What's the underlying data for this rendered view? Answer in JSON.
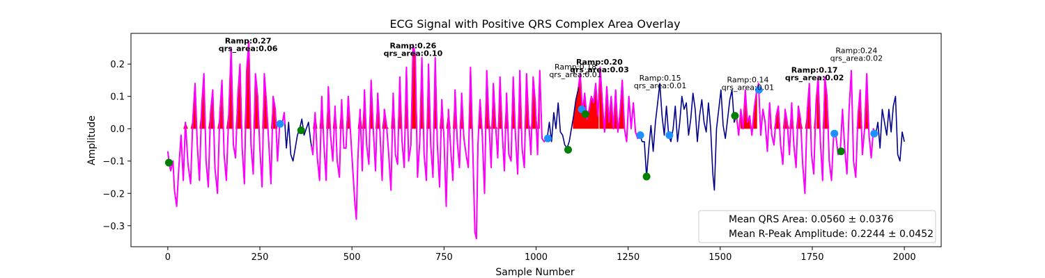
{
  "chart_data": {
    "type": "line",
    "title": "ECG Signal with Positive QRS Complex Area Overlay",
    "xlabel": "Sample Number",
    "ylabel": "Amplitude",
    "xlim": [
      -100,
      2100
    ],
    "ylim": [
      -0.365,
      0.295
    ],
    "x_ticks": [
      0,
      250,
      500,
      750,
      1000,
      1250,
      1500,
      1750,
      2000
    ],
    "y_ticks": [
      -0.3,
      -0.2,
      -0.1,
      0.0,
      0.1,
      0.2
    ],
    "grid": false,
    "legend_position": "lower-right",
    "colors": {
      "signal_base": "#00008b",
      "signal_qrs": "#ff00ff",
      "signal_qrs_faint": "#9b30d8",
      "area_fill": "#ff0000",
      "onset_marker": "#1e90ff",
      "offset_marker": "#008000"
    },
    "signal_anchor_points": [
      [
        0,
        -0.07
      ],
      [
        4,
        -0.11
      ],
      [
        8,
        -0.13
      ],
      [
        14,
        -0.1
      ],
      [
        18,
        -0.19
      ],
      [
        24,
        -0.24
      ],
      [
        30,
        -0.12
      ],
      [
        36,
        -0.02
      ],
      [
        42,
        -0.16
      ],
      [
        48,
        0.02
      ],
      [
        55,
        -0.11
      ],
      [
        62,
        -0.17
      ],
      [
        68,
        0.03
      ],
      [
        74,
        0.14
      ],
      [
        80,
        -0.05
      ],
      [
        86,
        -0.16
      ],
      [
        92,
        0.07
      ],
      [
        98,
        0.17
      ],
      [
        104,
        -0.1
      ],
      [
        110,
        -0.18
      ],
      [
        116,
        0.05
      ],
      [
        122,
        0.12
      ],
      [
        128,
        -0.12
      ],
      [
        135,
        -0.2
      ],
      [
        141,
        0.04
      ],
      [
        147,
        0.15
      ],
      [
        153,
        -0.08
      ],
      [
        159,
        -0.16
      ],
      [
        166,
        0.06
      ],
      [
        172,
        0.25
      ],
      [
        178,
        -0.05
      ],
      [
        184,
        -0.09
      ],
      [
        190,
        0.1
      ],
      [
        196,
        0.2
      ],
      [
        202,
        -0.06
      ],
      [
        208,
        -0.17
      ],
      [
        214,
        0.18
      ],
      [
        220,
        0.27
      ],
      [
        226,
        -0.05
      ],
      [
        232,
        -0.14
      ],
      [
        238,
        0.17
      ],
      [
        244,
        0.1
      ],
      [
        250,
        -0.06
      ],
      [
        256,
        -0.18
      ],
      [
        262,
        0.17
      ],
      [
        268,
        0.08
      ],
      [
        274,
        -0.04
      ],
      [
        280,
        -0.17
      ],
      [
        286,
        0.1
      ],
      [
        292,
        0.06
      ],
      [
        298,
        -0.1
      ],
      [
        304,
        0.02
      ],
      [
        310,
        0.01
      ],
      [
        316,
        0.05
      ],
      [
        322,
        -0.06
      ],
      [
        328,
        0.02
      ],
      [
        334,
        -0.08
      ],
      [
        340,
        -0.1
      ],
      [
        346,
        -0.06
      ],
      [
        352,
        -0.02
      ],
      [
        358,
        0.0
      ],
      [
        364,
        0.03
      ],
      [
        370,
        -0.02
      ],
      [
        376,
        0.0
      ],
      [
        382,
        0.02
      ],
      [
        388,
        -0.04
      ],
      [
        394,
        -0.08
      ],
      [
        400,
        0.05
      ],
      [
        406,
        -0.09
      ],
      [
        412,
        -0.16
      ],
      [
        418,
        0.1
      ],
      [
        424,
        -0.05
      ],
      [
        430,
        -0.16
      ],
      [
        436,
        0.13
      ],
      [
        442,
        -0.02
      ],
      [
        448,
        -0.1
      ],
      [
        454,
        0.07
      ],
      [
        460,
        -0.1
      ],
      [
        466,
        -0.15
      ],
      [
        472,
        0.09
      ],
      [
        478,
        -0.06
      ],
      [
        484,
        -0.06
      ],
      [
        490,
        0.1
      ],
      [
        496,
        -0.01
      ],
      [
        502,
        -0.12
      ],
      [
        508,
        -0.23
      ],
      [
        512,
        -0.28
      ],
      [
        516,
        -0.1
      ],
      [
        522,
        0.06
      ],
      [
        528,
        -0.13
      ],
      [
        534,
        0.12
      ],
      [
        540,
        -0.05
      ],
      [
        546,
        -0.11
      ],
      [
        552,
        0.15
      ],
      [
        558,
        0.0
      ],
      [
        564,
        -0.13
      ],
      [
        570,
        0.11
      ],
      [
        576,
        -0.01
      ],
      [
        582,
        -0.16
      ],
      [
        588,
        0.06
      ],
      [
        594,
        0.01
      ],
      [
        600,
        -0.08
      ],
      [
        606,
        -0.19
      ],
      [
        612,
        0.11
      ],
      [
        618,
        -0.08
      ],
      [
        624,
        -0.11
      ],
      [
        630,
        0.16
      ],
      [
        636,
        -0.04
      ],
      [
        642,
        -0.12
      ],
      [
        648,
        0.19
      ],
      [
        654,
        -0.1
      ],
      [
        660,
        -0.05
      ],
      [
        666,
        0.26
      ],
      [
        672,
        0.23
      ],
      [
        678,
        -0.15
      ],
      [
        684,
        -0.04
      ],
      [
        690,
        0.22
      ],
      [
        696,
        -0.08
      ],
      [
        702,
        -0.16
      ],
      [
        708,
        0.2
      ],
      [
        714,
        -0.05
      ],
      [
        720,
        -0.15
      ],
      [
        726,
        0.22
      ],
      [
        732,
        -0.05
      ],
      [
        738,
        -0.18
      ],
      [
        744,
        0.09
      ],
      [
        750,
        -0.03
      ],
      [
        756,
        -0.24
      ],
      [
        762,
        0.06
      ],
      [
        768,
        -0.06
      ],
      [
        774,
        -0.16
      ],
      [
        780,
        0.12
      ],
      [
        786,
        -0.04
      ],
      [
        792,
        -0.12
      ],
      [
        798,
        0.11
      ],
      [
        804,
        -0.03
      ],
      [
        810,
        -0.08
      ],
      [
        816,
        -0.12
      ],
      [
        822,
        0.19
      ],
      [
        828,
        -0.06
      ],
      [
        834,
        -0.32
      ],
      [
        838,
        -0.34
      ],
      [
        842,
        -0.05
      ],
      [
        848,
        0.09
      ],
      [
        854,
        -0.02
      ],
      [
        860,
        -0.2
      ],
      [
        866,
        0.18
      ],
      [
        872,
        0.02
      ],
      [
        878,
        -0.12
      ],
      [
        884,
        0.14
      ],
      [
        890,
        0.01
      ],
      [
        896,
        -0.09
      ],
      [
        902,
        0.16
      ],
      [
        908,
        -0.01
      ],
      [
        914,
        -0.13
      ],
      [
        920,
        0.11
      ],
      [
        926,
        -0.08
      ],
      [
        932,
        -0.1
      ],
      [
        938,
        0.16
      ],
      [
        944,
        -0.02
      ],
      [
        950,
        -0.14
      ],
      [
        956,
        0.18
      ],
      [
        962,
        -0.06
      ],
      [
        968,
        -0.12
      ],
      [
        974,
        0.17
      ],
      [
        980,
        0.02
      ],
      [
        986,
        -0.08
      ],
      [
        992,
        0.16
      ],
      [
        998,
        0.08
      ],
      [
        1004,
        -0.08
      ],
      [
        1010,
        0.18
      ],
      [
        1016,
        -0.03
      ],
      [
        1022,
        -0.04
      ],
      [
        1030,
        -0.03
      ],
      [
        1036,
        0.02
      ],
      [
        1042,
        -0.04
      ],
      [
        1048,
        0.05
      ],
      [
        1054,
        0.0
      ],
      [
        1060,
        0.08
      ],
      [
        1066,
        -0.01
      ],
      [
        1072,
        -0.02
      ],
      [
        1078,
        -0.05
      ],
      [
        1084,
        -0.06
      ],
      [
        1090,
        -0.04
      ],
      [
        1096,
        0.0
      ],
      [
        1102,
        0.04
      ],
      [
        1108,
        0.09
      ],
      [
        1114,
        0.12
      ],
      [
        1120,
        0.17
      ],
      [
        1126,
        0.05
      ],
      [
        1132,
        0.11
      ],
      [
        1138,
        0.03
      ],
      [
        1144,
        0.06
      ],
      [
        1150,
        0.1
      ],
      [
        1156,
        0.08
      ],
      [
        1162,
        0.14
      ],
      [
        1168,
        0.04
      ],
      [
        1174,
        0.19
      ],
      [
        1180,
        0.08
      ],
      [
        1186,
        -0.01
      ],
      [
        1192,
        0.13
      ],
      [
        1198,
        0.02
      ],
      [
        1204,
        0.1
      ],
      [
        1210,
        0.0
      ],
      [
        1216,
        0.12
      ],
      [
        1222,
        -0.01
      ],
      [
        1228,
        0.05
      ],
      [
        1234,
        0.15
      ],
      [
        1240,
        0.0
      ],
      [
        1246,
        -0.04
      ],
      [
        1252,
        0.1
      ],
      [
        1258,
        0.0
      ],
      [
        1264,
        0.08
      ],
      [
        1270,
        -0.01
      ],
      [
        1276,
        -0.03
      ],
      [
        1282,
        -0.02
      ],
      [
        1288,
        -0.04
      ],
      [
        1294,
        -0.04
      ],
      [
        1300,
        -0.15
      ],
      [
        1306,
        -0.06
      ],
      [
        1312,
        0.01
      ],
      [
        1318,
        -0.07
      ],
      [
        1324,
        0.02
      ],
      [
        1330,
        0.08
      ],
      [
        1336,
        0.14
      ],
      [
        1342,
        0.04
      ],
      [
        1348,
        -0.02
      ],
      [
        1354,
        0.07
      ],
      [
        1360,
        -0.02
      ],
      [
        1366,
        -0.04
      ],
      [
        1372,
        0.0
      ],
      [
        1378,
        0.07
      ],
      [
        1384,
        -0.04
      ],
      [
        1390,
        0.02
      ],
      [
        1396,
        0.1
      ],
      [
        1402,
        0.06
      ],
      [
        1408,
        0.08
      ],
      [
        1414,
        -0.02
      ],
      [
        1420,
        0.03
      ],
      [
        1426,
        0.11
      ],
      [
        1432,
        0.06
      ],
      [
        1438,
        -0.04
      ],
      [
        1444,
        0.04
      ],
      [
        1450,
        0.09
      ],
      [
        1456,
        0.02
      ],
      [
        1462,
        -0.01
      ],
      [
        1468,
        0.08
      ],
      [
        1474,
        0.0
      ],
      [
        1480,
        -0.14
      ],
      [
        1484,
        -0.19
      ],
      [
        1490,
        0.0
      ],
      [
        1496,
        0.06
      ],
      [
        1502,
        0.12
      ],
      [
        1508,
        0.01
      ],
      [
        1514,
        -0.03
      ],
      [
        1520,
        0.03
      ],
      [
        1526,
        0.09
      ],
      [
        1532,
        0.12
      ],
      [
        1538,
        0.02
      ],
      [
        1544,
        0.04
      ],
      [
        1550,
        -0.02
      ],
      [
        1556,
        0.06
      ],
      [
        1562,
        0.0
      ],
      [
        1568,
        0.12
      ],
      [
        1574,
        0.02
      ],
      [
        1580,
        0.04
      ],
      [
        1586,
        -0.02
      ],
      [
        1592,
        0.06
      ],
      [
        1598,
        0.11
      ],
      [
        1604,
        0.14
      ],
      [
        1610,
        -0.02
      ],
      [
        1616,
        0.06
      ],
      [
        1622,
        0.02
      ],
      [
        1628,
        -0.07
      ],
      [
        1634,
        0.08
      ],
      [
        1640,
        -0.02
      ],
      [
        1646,
        -0.05
      ],
      [
        1652,
        0.04
      ],
      [
        1658,
        0.07
      ],
      [
        1664,
        -0.05
      ],
      [
        1670,
        -0.11
      ],
      [
        1676,
        0.06
      ],
      [
        1682,
        0.02
      ],
      [
        1688,
        -0.08
      ],
      [
        1694,
        0.08
      ],
      [
        1700,
        -0.05
      ],
      [
        1706,
        -0.12
      ],
      [
        1712,
        0.07
      ],
      [
        1718,
        0.03
      ],
      [
        1724,
        -0.11
      ],
      [
        1730,
        -0.2
      ],
      [
        1736,
        0.05
      ],
      [
        1742,
        0.14
      ],
      [
        1748,
        -0.08
      ],
      [
        1754,
        -0.14
      ],
      [
        1760,
        0.08
      ],
      [
        1766,
        0.16
      ],
      [
        1772,
        -0.04
      ],
      [
        1778,
        -0.16
      ],
      [
        1784,
        0.16
      ],
      [
        1790,
        0.1
      ],
      [
        1796,
        -0.1
      ],
      [
        1802,
        -0.16
      ],
      [
        1808,
        -0.02
      ],
      [
        1814,
        -0.02
      ],
      [
        1820,
        -0.08
      ],
      [
        1826,
        -0.07
      ],
      [
        1832,
        0.06
      ],
      [
        1838,
        -0.06
      ],
      [
        1844,
        -0.14
      ],
      [
        1850,
        0.06
      ],
      [
        1856,
        0.18
      ],
      [
        1862,
        -0.1
      ],
      [
        1868,
        -0.15
      ],
      [
        1874,
        0.04
      ],
      [
        1880,
        0.12
      ],
      [
        1886,
        -0.08
      ],
      [
        1892,
        0.0
      ],
      [
        1898,
        0.17
      ],
      [
        1904,
        -0.02
      ],
      [
        1910,
        -0.09
      ],
      [
        1916,
        0.0
      ],
      [
        1922,
        -0.02
      ],
      [
        1928,
        0.02
      ],
      [
        1934,
        -0.06
      ],
      [
        1940,
        0.06
      ],
      [
        1946,
        0.02
      ],
      [
        1952,
        -0.02
      ],
      [
        1958,
        0.06
      ],
      [
        1964,
        -0.01
      ],
      [
        1970,
        0.07
      ],
      [
        1976,
        0.1
      ],
      [
        1982,
        -0.08
      ],
      [
        1988,
        -0.1
      ],
      [
        1994,
        -0.01
      ],
      [
        2000,
        -0.04
      ]
    ],
    "qrs_segments": [
      {
        "start": 0,
        "end": 318,
        "color": "signal_qrs"
      },
      {
        "start": 390,
        "end": 1030,
        "color": "signal_qrs"
      },
      {
        "start": 1115,
        "end": 1285,
        "color": "signal_qrs"
      },
      {
        "start": 1540,
        "end": 1650,
        "color": "signal_qrs"
      },
      {
        "start": 1650,
        "end": 1920,
        "color": "signal_qrs"
      }
    ],
    "area_regions": [
      {
        "start": 25,
        "end": 300
      },
      {
        "start": 385,
        "end": 1010
      },
      {
        "start": 1100,
        "end": 1170
      },
      {
        "start": 1172,
        "end": 1250
      },
      {
        "start": 1555,
        "end": 1600
      },
      {
        "start": 1635,
        "end": 1760
      },
      {
        "start": 1762,
        "end": 1800
      },
      {
        "start": 1870,
        "end": 1910
      }
    ],
    "onset_markers": [
      {
        "x": 305,
        "y": 0.015
      },
      {
        "x": 1032,
        "y": -0.03
      },
      {
        "x": 1124,
        "y": 0.06
      },
      {
        "x": 1283,
        "y": -0.02
      },
      {
        "x": 1362,
        "y": -0.02
      },
      {
        "x": 1605,
        "y": 0.12
      },
      {
        "x": 1810,
        "y": -0.015
      },
      {
        "x": 1918,
        "y": -0.015
      }
    ],
    "offset_markers": [
      {
        "x": 3,
        "y": -0.105
      },
      {
        "x": 362,
        "y": -0.005
      },
      {
        "x": 1087,
        "y": -0.065
      },
      {
        "x": 1134,
        "y": 0.045
      },
      {
        "x": 1300,
        "y": -0.148
      },
      {
        "x": 1540,
        "y": 0.04
      },
      {
        "x": 1828,
        "y": -0.07
      }
    ],
    "annotations": [
      {
        "lines": [
          "Ramp:0.27",
          "qrs_area:0.06"
        ],
        "x": 218,
        "y": 0.27,
        "bold": true
      },
      {
        "lines": [
          "Ramp:0.26",
          "qrs_area:0.10"
        ],
        "x": 666,
        "y": 0.255,
        "bold": true
      },
      {
        "lines": [
          "Ramp:0.18",
          "qrs_area:0.01"
        ],
        "x": 1107,
        "y": 0.19,
        "bold": false
      },
      {
        "lines": [
          "Ramp:0.20",
          "qrs_area:0.03"
        ],
        "x": 1172,
        "y": 0.205,
        "bold": true
      },
      {
        "lines": [
          "Ramp:0.15",
          "qrs_area:0.01"
        ],
        "x": 1337,
        "y": 0.155,
        "bold": false
      },
      {
        "lines": [
          "Ramp:0.14",
          "qrs_area:0.01"
        ],
        "x": 1575,
        "y": 0.15,
        "bold": false
      },
      {
        "lines": [
          "Ramp:0.17",
          "qrs_area:0.02"
        ],
        "x": 1756,
        "y": 0.18,
        "bold": true
      },
      {
        "lines": [
          "Ramp:0.24",
          "qrs_area:0.02"
        ],
        "x": 1870,
        "y": 0.24,
        "bold": false
      }
    ],
    "legend": [
      "Mean QRS Area: 0.0560 ± 0.0376",
      "Mean R-Peak Amplitude: 0.2244 ± 0.0452"
    ]
  }
}
